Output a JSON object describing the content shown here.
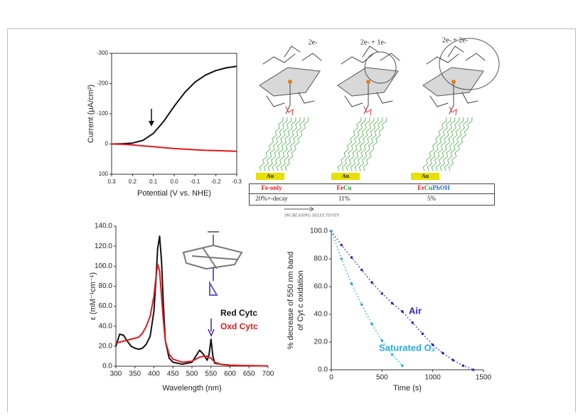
{
  "chart_data": [
    {
      "type": "line",
      "xlabel": "Potential (V vs. NHE)",
      "ylabel": "Current (μA/cm²)",
      "x": [
        0.3,
        0.25,
        0.2,
        0.15,
        0.1,
        0.05,
        0,
        -0.05,
        -0.1,
        -0.15,
        -0.2,
        -0.25,
        -0.3
      ],
      "series": [
        {
          "color": "#111111",
          "values": [
            0,
            -1,
            -3,
            -12,
            -35,
            -75,
            -125,
            -170,
            -205,
            -228,
            -243,
            -252,
            -257
          ]
        },
        {
          "color": "#e0191e",
          "values": [
            0,
            1,
            3,
            6,
            9,
            12,
            15,
            17,
            19,
            21,
            22,
            23,
            24
          ]
        }
      ],
      "xlim": [
        0.3,
        -0.3
      ],
      "ylim": [
        100,
        -300
      ],
      "xticks": [
        0.3,
        0.2,
        0.1,
        {
          "value": 0,
          "label": "0.0"
        },
        -0.1,
        -0.2,
        -0.3
      ],
      "yticks": [
        -300,
        -200,
        -100,
        0,
        100
      ]
    },
    {
      "type": "line",
      "xlabel": "Wavelength (nm)",
      "ylabel": "ε (mM⁻¹cm⁻¹)",
      "x": [
        300,
        310,
        320,
        330,
        340,
        350,
        360,
        370,
        380,
        390,
        400,
        405,
        410,
        415,
        420,
        425,
        430,
        440,
        450,
        475,
        500,
        510,
        520,
        530,
        540,
        545,
        550,
        555,
        560,
        575,
        600,
        650,
        700
      ],
      "series": [
        {
          "name": "Red Cytc",
          "color": "#111111",
          "values": [
            20,
            32,
            31,
            25,
            20,
            18,
            17,
            18,
            22,
            30,
            55,
            85,
            118,
            130,
            105,
            60,
            25,
            8,
            4,
            2,
            4,
            10,
            16,
            12,
            6,
            12,
            27,
            10,
            3,
            2,
            1,
            0.5,
            0.3
          ]
        },
        {
          "name": "Oxd Cytc",
          "color": "#e0191e",
          "values": [
            23,
            24,
            25,
            26,
            27,
            28,
            29,
            33,
            40,
            50,
            70,
            88,
            102,
            95,
            70,
            45,
            25,
            12,
            7,
            4,
            5,
            7,
            9,
            10,
            10,
            9,
            8,
            6,
            4,
            2,
            1,
            0.5,
            0.3
          ]
        }
      ],
      "xlim": [
        300,
        700
      ],
      "ylim": [
        0,
        140
      ],
      "xticks": [
        300,
        350,
        400,
        450,
        500,
        550,
        600,
        650,
        700
      ],
      "yticks": [
        {
          "value": 0,
          "label": "0.0"
        },
        {
          "value": 20,
          "label": "20.0"
        },
        {
          "value": 40,
          "label": "40.0"
        },
        {
          "value": 60,
          "label": "60.0"
        },
        {
          "value": 80,
          "label": "80.0"
        },
        {
          "value": 100,
          "label": "100.0"
        },
        {
          "value": 120,
          "label": "120.0"
        },
        {
          "value": 140,
          "label": "140.0"
        }
      ]
    },
    {
      "type": "scatter",
      "xlabel": "Time (s)",
      "ylabel": [
        "% decrease of 550 nm band",
        "of Cyt c oxidation"
      ],
      "x": [
        0,
        100,
        200,
        300,
        400,
        500,
        600,
        700,
        800,
        900,
        1000,
        1100,
        1200,
        1300,
        1400
      ],
      "series": [
        {
          "name": "Air",
          "color": "#3b20b0",
          "values": [
            100,
            90,
            81,
            72,
            63,
            55,
            48,
            42,
            34,
            26,
            18,
            12,
            7,
            3,
            0
          ]
        },
        {
          "name": "Saturated O₂",
          "color": "#2aa9e0",
          "values": [
            100,
            80,
            62,
            47,
            33,
            21,
            11,
            3,
            null,
            null,
            null,
            null,
            null,
            null,
            null
          ]
        }
      ],
      "xlim": [
        0,
        1500
      ],
      "ylim": [
        0,
        100
      ],
      "xticks": [
        0,
        500,
        1000,
        1500
      ],
      "yticks": [
        {
          "value": 0,
          "label": "0.0"
        },
        {
          "value": 20,
          "label": "20.0"
        },
        {
          "value": 40,
          "label": "40.0"
        },
        {
          "value": 60,
          "label": "60.0"
        },
        {
          "value": 80,
          "label": "80.0"
        },
        {
          "value": 100,
          "label": "100.0"
        }
      ]
    }
  ],
  "diagram": {
    "labels": [
      "2e-",
      "2e- + 1e-",
      "2e- + 2e-"
    ],
    "electrode": [
      "Au",
      "Au",
      "Au"
    ],
    "table": {
      "header": [
        [
          "Fe-only"
        ],
        [
          "Fe",
          "Cu"
        ],
        [
          "Fe",
          "Cu",
          "PhOH"
        ]
      ],
      "row": [
        "20%+-decay",
        "11%",
        "5%"
      ]
    },
    "arrow_label": "INCREASING SELECTIVITY"
  }
}
